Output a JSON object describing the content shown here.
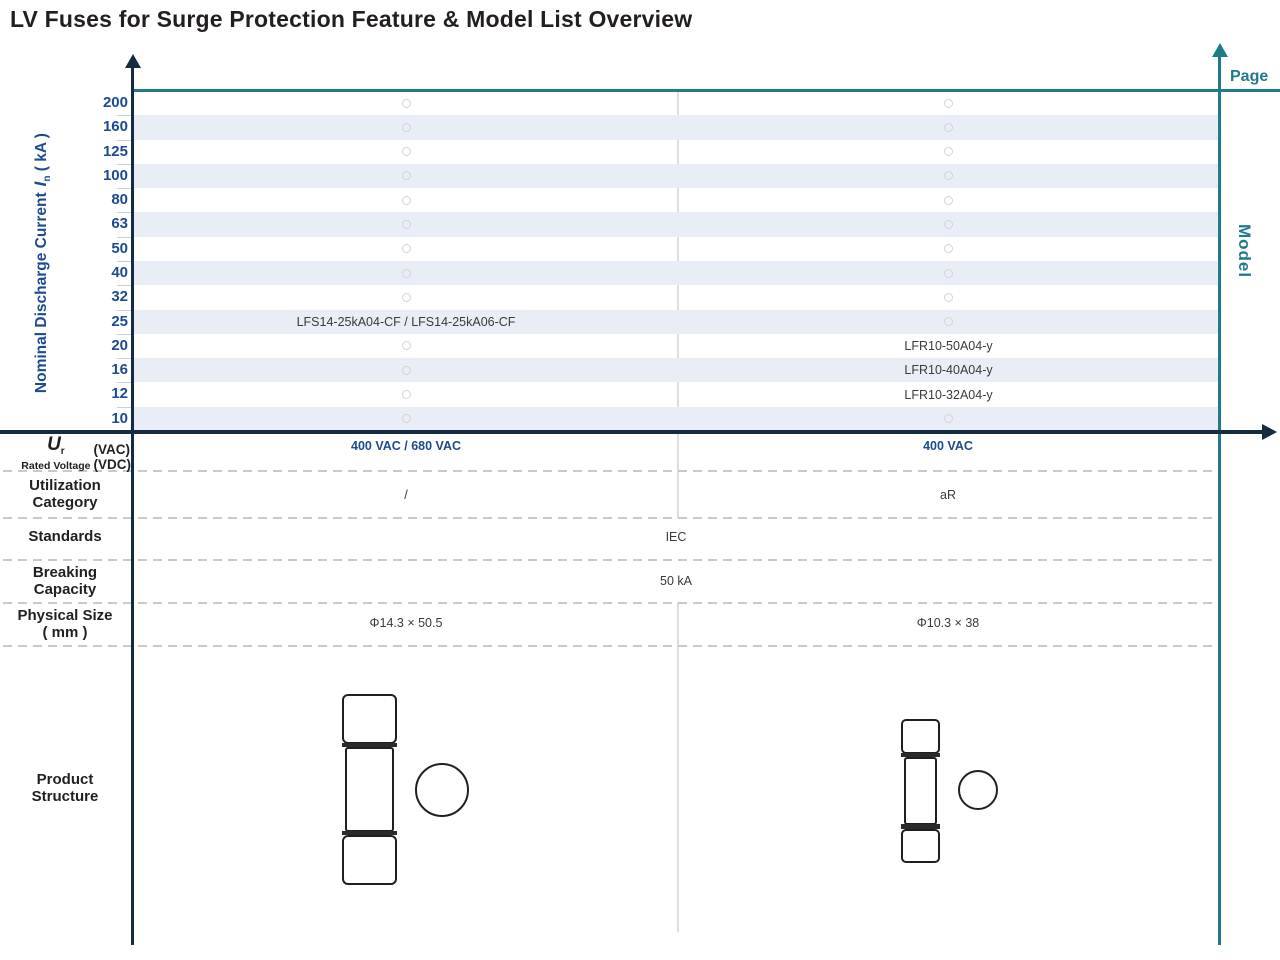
{
  "title": "LV Fuses for Surge Protection Feature & Model List Overview",
  "axis": {
    "y_title": "Nominal Discharge Current",
    "y_symbol": "I",
    "y_symbol_sub": "n",
    "y_unit": "( kA )",
    "page_label": "Page",
    "model_label": "Model"
  },
  "chart_data": {
    "type": "table",
    "title": "LV Fuses for Surge Protection Feature & Model List Overview",
    "y_axis_label": "Nominal Discharge Current In ( kA )",
    "x_axis_label": "Model",
    "right_axis_label": "Page",
    "y_ticks": [
      200,
      160,
      125,
      100,
      80,
      63,
      50,
      40,
      32,
      25,
      20,
      16,
      12,
      10
    ],
    "legend": "empty circle = no model at this nominal discharge current",
    "rows": [
      {
        "kA": "200",
        "left": null,
        "right": null
      },
      {
        "kA": "160",
        "left": null,
        "right": null
      },
      {
        "kA": "125",
        "left": null,
        "right": null
      },
      {
        "kA": "100",
        "left": null,
        "right": null
      },
      {
        "kA": "80",
        "left": null,
        "right": null
      },
      {
        "kA": "63",
        "left": null,
        "right": null
      },
      {
        "kA": "50",
        "left": null,
        "right": null
      },
      {
        "kA": "40",
        "left": null,
        "right": null
      },
      {
        "kA": "32",
        "left": null,
        "right": null
      },
      {
        "kA": "25",
        "left": "LFS14-25kA04-CF / LFS14-25kA06-CF",
        "right": null
      },
      {
        "kA": "20",
        "left": null,
        "right": "LFR10-50A04-y"
      },
      {
        "kA": "16",
        "left": null,
        "right": "LFR10-40A04-y"
      },
      {
        "kA": "12",
        "left": null,
        "right": "LFR10-32A04-y"
      },
      {
        "kA": "10",
        "left": null,
        "right": null
      }
    ]
  },
  "specs": {
    "rated_voltage": {
      "symbol": "U",
      "symbol_sub": "r",
      "label": "Rated Voltage",
      "unit_line1": "(VAC)",
      "unit_line2": "(VDC)",
      "left_value": "400 VAC / 680 VAC",
      "right_value": "400 VAC"
    },
    "utilization": {
      "label_line1": "Utilization",
      "label_line2": "Category",
      "left_value": "/",
      "right_value": "aR"
    },
    "standards": {
      "label": "Standards",
      "value": "IEC"
    },
    "breaking": {
      "label_line1": "Breaking",
      "label_line2": "Capacity",
      "value": "50 kA"
    },
    "physical": {
      "label_line1": "Physical Size",
      "label_line2": "( mm )",
      "left_value": "Φ14.3 × 50.5",
      "right_value": "Φ10.3 × 38"
    },
    "product_structure": {
      "label_line1": "Product",
      "label_line2": "Structure"
    }
  },
  "colors": {
    "teal": "#1f7b8b",
    "navy": "#132c42",
    "blue": "#1d4a90",
    "stripe": "#e9edf5",
    "marker_outline": "#d4d4d4"
  }
}
